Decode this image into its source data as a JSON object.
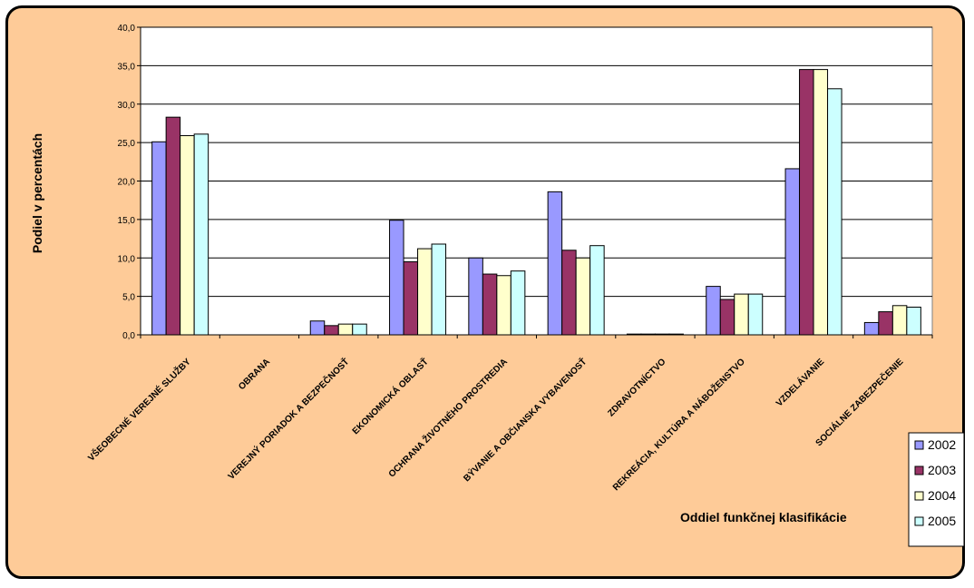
{
  "chart_data": {
    "type": "bar",
    "title": "",
    "ylabel": "Podiel v percentách",
    "xlabel": "Oddiel funkčnej klasifikácie",
    "ylim": [
      0,
      40
    ],
    "yticks": [
      "0,0",
      "5,0",
      "10,0",
      "15,0",
      "20,0",
      "25,0",
      "30,0",
      "35,0",
      "40,0"
    ],
    "grid": "horizontal",
    "legend_position": "right",
    "categories": [
      "VŠEOBECNÉ VEREJNÉ SLUŽBY",
      "OBRANA",
      "VEREJNÝ PORIADOK A BEZPEČNOSŤ",
      "EKONOMICKÁ OBLASŤ",
      "OCHRANA ŽIVOTNÉHO PROSTREDIA",
      "BÝVANIE A OBČIANSKA VYBAVENOSŤ",
      "ZDRAVOTNÍCTVO",
      "REKREÁCIA, KULTÚRA A NÁBOŽENSTVO",
      "VZDELÁVANIE",
      "SOCIÁLNE ZABEZPEČENIE"
    ],
    "series": [
      {
        "name": "2002",
        "color": "#9999ff",
        "values": [
          25.1,
          0.0,
          1.8,
          14.9,
          10.0,
          18.6,
          0.1,
          6.3,
          21.6,
          1.6
        ]
      },
      {
        "name": "2003",
        "color": "#993366",
        "values": [
          28.3,
          0.0,
          1.2,
          9.5,
          7.9,
          11.0,
          0.1,
          4.6,
          34.5,
          3.0
        ]
      },
      {
        "name": "2004",
        "color": "#ffffcc",
        "values": [
          25.9,
          0.0,
          1.4,
          11.2,
          7.7,
          10.0,
          0.1,
          5.3,
          34.5,
          3.8
        ]
      },
      {
        "name": "2005",
        "color": "#ccffff",
        "values": [
          26.1,
          0.0,
          1.4,
          11.8,
          8.3,
          11.6,
          0.1,
          5.3,
          32.0,
          3.6
        ]
      }
    ]
  },
  "colors": {
    "frame_background": "#fecb98",
    "plot_background": "#ffffff"
  }
}
